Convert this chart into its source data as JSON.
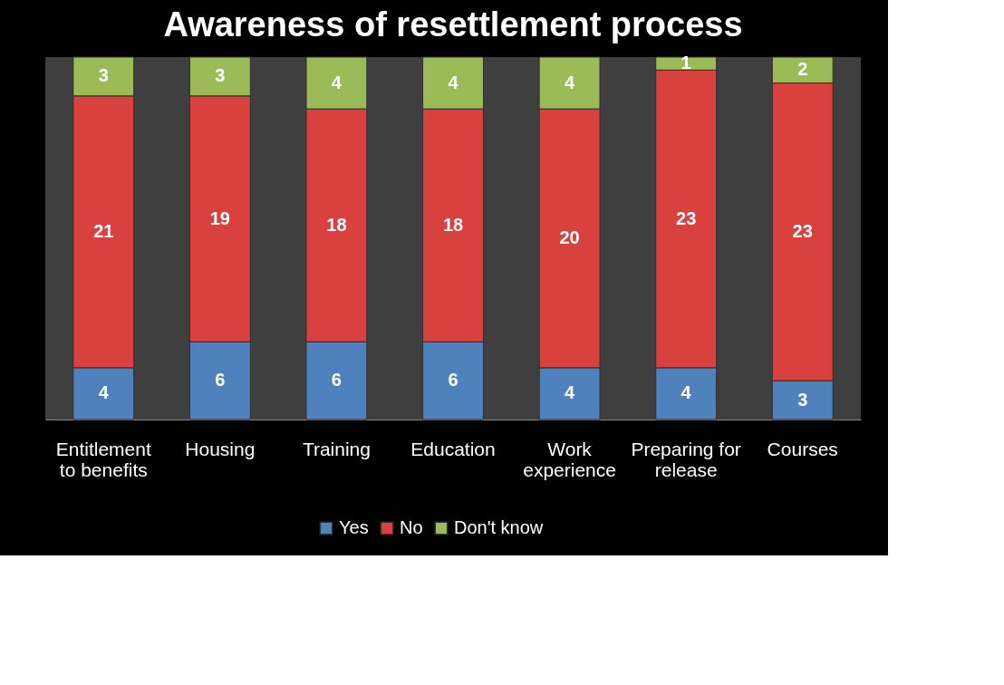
{
  "chart_data": {
    "type": "bar",
    "title": "Awareness of resettlement process",
    "categories": [
      "Entitlement to benefits",
      "Housing",
      "Training",
      "Education",
      "Work experience",
      "Preparing for release",
      "Courses"
    ],
    "stacked": true,
    "data_labels": true,
    "legend": "bottom",
    "series": [
      {
        "name": "Yes",
        "color": "#4f81bd",
        "values": [
          4,
          6,
          6,
          6,
          4,
          4,
          3
        ]
      },
      {
        "name": "No",
        "color": "#d9413f",
        "values": [
          21,
          19,
          18,
          18,
          20,
          23,
          23
        ]
      },
      {
        "name": "Don't know",
        "color": "#9bbb59",
        "values": [
          3,
          3,
          4,
          4,
          4,
          1,
          2
        ]
      }
    ]
  }
}
